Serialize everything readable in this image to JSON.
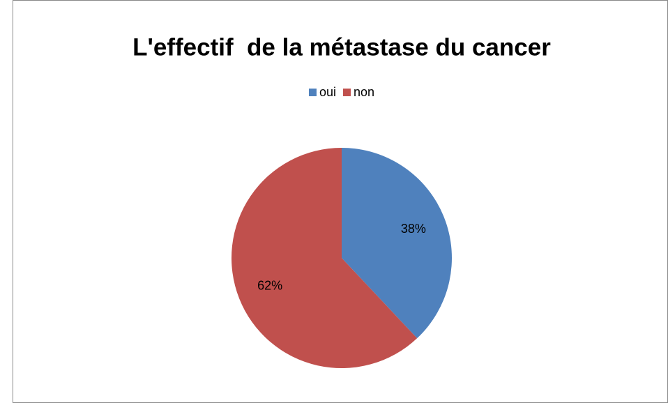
{
  "chart_data": {
    "type": "pie",
    "title": "L'effectif  de la métastase du cancer",
    "categories": [
      "oui",
      "non"
    ],
    "values": [
      38,
      62
    ],
    "value_labels": [
      "38%",
      "62%"
    ],
    "colors": [
      "#4f81bd",
      "#c0504d"
    ],
    "legend": "top"
  }
}
